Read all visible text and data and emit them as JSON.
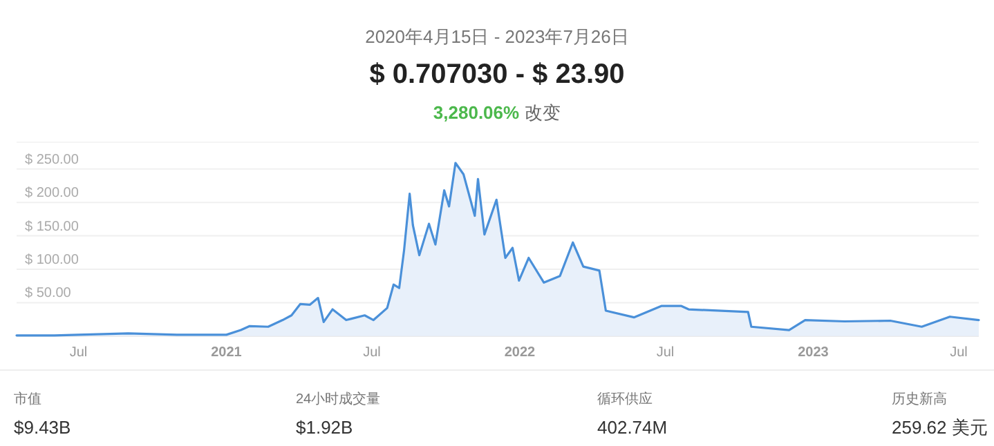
{
  "chart_data": {
    "type": "area",
    "title": "2020年4月15日 - 2023年7月26日",
    "subtitle": "$ 0.707030 - $ 23.90",
    "annotations": [
      "3,280.06%",
      "改变",
      "市值",
      "$9.43B",
      "24小时成交量",
      "$1.92B",
      "循环供应",
      "402.74M",
      "历史新高",
      "259.62 美元"
    ],
    "x": [
      "2020-04-15",
      "2020-06-01",
      "2020-07-01",
      "2020-09-01",
      "2020-11-01",
      "2021-01-01",
      "2021-01-19",
      "2021-01-30",
      "2021-02-22",
      "2021-03-12",
      "2021-03-23",
      "2021-04-03",
      "2021-04-15",
      "2021-04-25",
      "2021-05-02",
      "2021-05-13",
      "2021-05-30",
      "2021-06-22",
      "2021-07-03",
      "2021-07-20",
      "2021-07-28",
      "2021-08-04",
      "2021-08-10",
      "2021-08-17",
      "2021-08-21",
      "2021-08-29",
      "2021-09-10",
      "2021-09-18",
      "2021-09-29",
      "2021-10-05",
      "2021-10-13",
      "2021-10-23",
      "2021-11-06",
      "2021-11-10",
      "2021-11-18",
      "2021-12-03",
      "2021-12-14",
      "2021-12-23",
      "2021-12-31",
      "2022-01-12",
      "2022-01-31",
      "2022-02-20",
      "2022-03-08",
      "2022-03-21",
      "2022-04-10",
      "2022-04-18",
      "2022-05-23",
      "2022-06-26",
      "2022-07-21",
      "2022-07-30",
      "2022-10-12",
      "2022-10-16",
      "2022-12-02",
      "2022-12-22",
      "2023-02-09",
      "2023-04-07",
      "2023-05-16",
      "2023-06-20",
      "2023-07-26"
    ],
    "series": [
      {
        "color": "#4a90d9",
        "values": [
          1,
          1,
          2,
          4,
          2,
          2,
          9,
          15,
          14,
          24,
          31,
          48,
          47,
          57,
          21,
          40,
          24,
          31,
          24,
          42,
          77,
          72,
          128,
          213,
          166,
          121,
          168,
          137,
          218,
          194,
          259,
          242,
          180,
          235,
          152,
          204,
          117,
          132,
          83,
          117,
          80,
          90,
          140,
          104,
          98,
          38,
          28,
          45,
          45,
          40,
          36,
          14,
          9,
          24,
          22,
          23,
          14,
          29,
          24
        ]
      }
    ],
    "xlim": [
      "2020-04-15",
      "2023-07-26"
    ],
    "xticks": [
      {
        "value": "2020-07-01",
        "label": "Jul"
      },
      {
        "value": "2021-01-01",
        "label": "2021"
      },
      {
        "value": "2021-07-01",
        "label": "Jul"
      },
      {
        "value": "2022-01-01",
        "label": "2022"
      },
      {
        "value": "2022-07-01",
        "label": "Jul"
      },
      {
        "value": "2023-01-01",
        "label": "2023"
      },
      {
        "value": "2023-07-01",
        "label": "Jul"
      }
    ],
    "ylim": [
      0,
      290
    ],
    "yticks": [
      {
        "value": 50,
        "label": "$ 50.00"
      },
      {
        "value": 100,
        "label": "$ 100.00"
      },
      {
        "value": 150,
        "label": "$ 150.00"
      },
      {
        "value": 200,
        "label": "$ 200.00"
      },
      {
        "value": 250,
        "label": "$ 250.00"
      }
    ],
    "grid": "y"
  }
}
